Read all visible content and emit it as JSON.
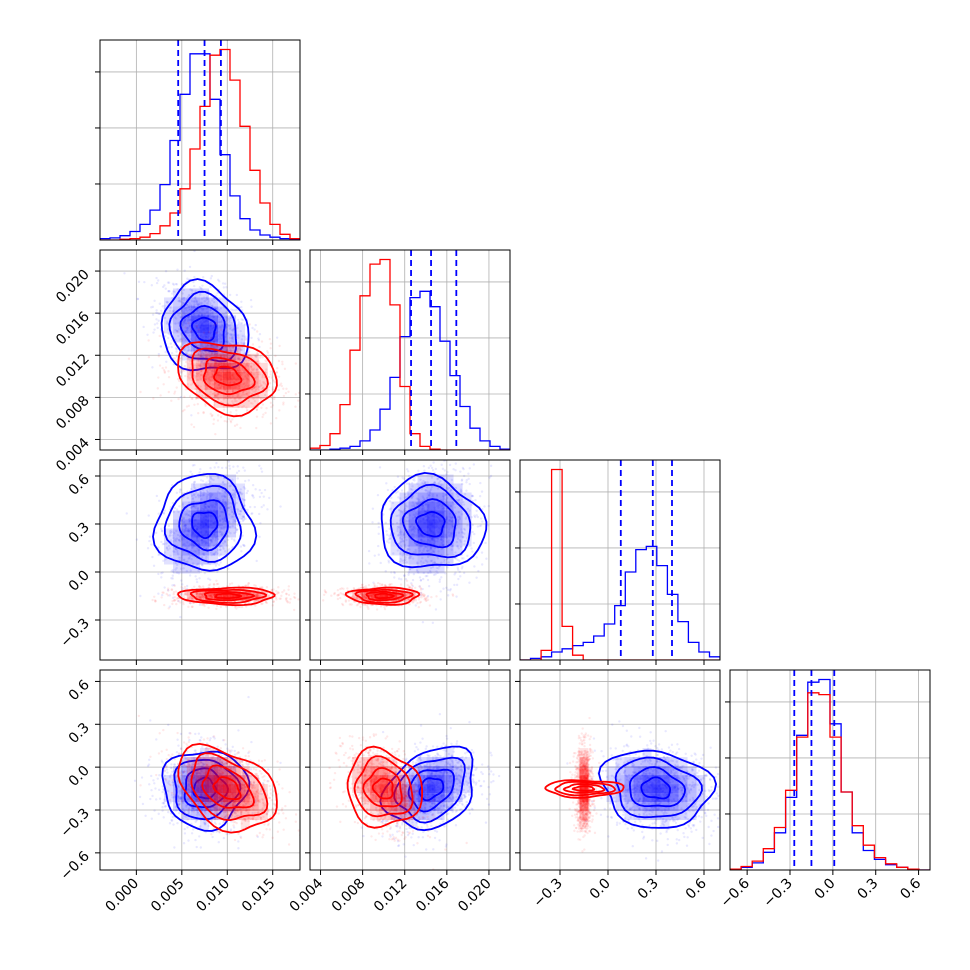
{
  "chart_data": {
    "type": "corner",
    "title": "",
    "grid": true,
    "series": [
      {
        "color": "#0000ff",
        "means": [
          0.0075,
          0.0145,
          0.3,
          -0.15
        ],
        "sigmas": [
          0.0022,
          0.002,
          0.16,
          0.13
        ]
      },
      {
        "color": "#ff0000",
        "means": [
          0.01,
          0.01,
          -0.15,
          -0.15
        ],
        "sigmas": [
          0.0025,
          0.0016,
          0.025,
          0.13
        ]
      }
    ],
    "quantiles": [
      {
        "column": 0,
        "color": "#0000ff",
        "values": [
          0.0046,
          0.0075,
          0.0093
        ]
      },
      {
        "column": 1,
        "color": "#0000ff",
        "values": [
          0.0126,
          0.0145,
          0.0169
        ]
      },
      {
        "column": 2,
        "color": "#0000ff",
        "values": [
          0.08,
          0.28,
          0.4
        ]
      },
      {
        "column": 3,
        "color": "#0000ff",
        "values": [
          -0.27,
          -0.15,
          0.01
        ]
      }
    ],
    "params": [
      {
        "index": 0,
        "lim": [
          -0.004,
          0.018
        ],
        "ticks": [
          "0.000",
          "0.005",
          "0.010",
          "0.015"
        ],
        "tick_values": [
          0.0,
          0.005,
          0.01,
          0.015
        ]
      },
      {
        "index": 1,
        "lim": [
          0.003,
          0.022
        ],
        "ticks": [
          "0.004",
          "0.008",
          "0.012",
          "0.016",
          "0.020"
        ],
        "tick_values": [
          0.004,
          0.008,
          0.012,
          0.016,
          0.02
        ]
      },
      {
        "index": 2,
        "lim": [
          -0.55,
          0.7
        ],
        "ticks": [
          "−0.3",
          "0.0",
          "0.3",
          "0.6"
        ],
        "tick_values": [
          -0.3,
          0.0,
          0.3,
          0.6
        ]
      },
      {
        "index": 3,
        "lim": [
          -0.72,
          0.68
        ],
        "ticks": [
          "−0.6",
          "−0.3",
          "0.0",
          "0.3",
          "0.6"
        ],
        "tick_values": [
          -0.6,
          -0.3,
          0.0,
          0.3,
          0.6
        ]
      }
    ],
    "histograms": [
      {
        "column": 0,
        "series": [
          {
            "color": "#0000ff",
            "counts": [
              2,
              3,
              6,
              12,
              22,
              42,
              78,
              140,
              205,
              262,
              262,
              198,
              120,
              62,
              30,
              14,
              7,
              4,
              2,
              1
            ]
          },
          {
            "color": "#ff0000",
            "counts": [
              0,
              0,
              1,
              2,
              4,
              9,
              20,
              38,
              72,
              128,
              188,
              260,
              268,
              225,
              160,
              98,
              52,
              22,
              8,
              2
            ]
          }
        ]
      },
      {
        "column": 1,
        "series": [
          {
            "color": "#0000ff",
            "counts": [
              0,
              0,
              1,
              2,
              4,
              10,
              22,
              45,
              80,
              125,
              168,
              175,
              158,
              120,
              82,
              48,
              24,
              10,
              4,
              1
            ]
          },
          {
            "color": "#ff0000",
            "counts": [
              2,
              5,
              18,
              50,
              110,
              170,
              205,
              210,
              160,
              70,
              18,
              4,
              1,
              0,
              0,
              0,
              0,
              0,
              0,
              0
            ]
          }
        ]
      },
      {
        "column": 2,
        "series": [
          {
            "color": "#0000ff",
            "counts": [
              0,
              2,
              4,
              10,
              14,
              18,
              22,
              30,
              45,
              68,
              110,
              138,
              142,
              118,
              82,
              48,
              22,
              10,
              4
            ]
          },
          {
            "color": "#ff0000",
            "counts": [
              0,
              0,
              12,
              238,
              42,
              6,
              0,
              0,
              0,
              0,
              0,
              0,
              0,
              0,
              0,
              0,
              0,
              0,
              0
            ]
          }
        ]
      },
      {
        "column": 3,
        "series": [
          {
            "color": "#0000ff",
            "counts": [
              1,
              3,
              8,
              20,
              42,
              82,
              152,
              212,
              215,
              165,
              88,
              42,
              22,
              12,
              6,
              3,
              1,
              0
            ]
          },
          {
            "color": "#ff0000",
            "counts": [
              1,
              4,
              10,
              24,
              48,
              90,
              150,
              200,
              198,
              150,
              88,
              50,
              28,
              14,
              7,
              3,
              1,
              0
            ]
          }
        ]
      }
    ],
    "hist_bar_max": [
      268,
      210,
      238,
      215
    ]
  }
}
